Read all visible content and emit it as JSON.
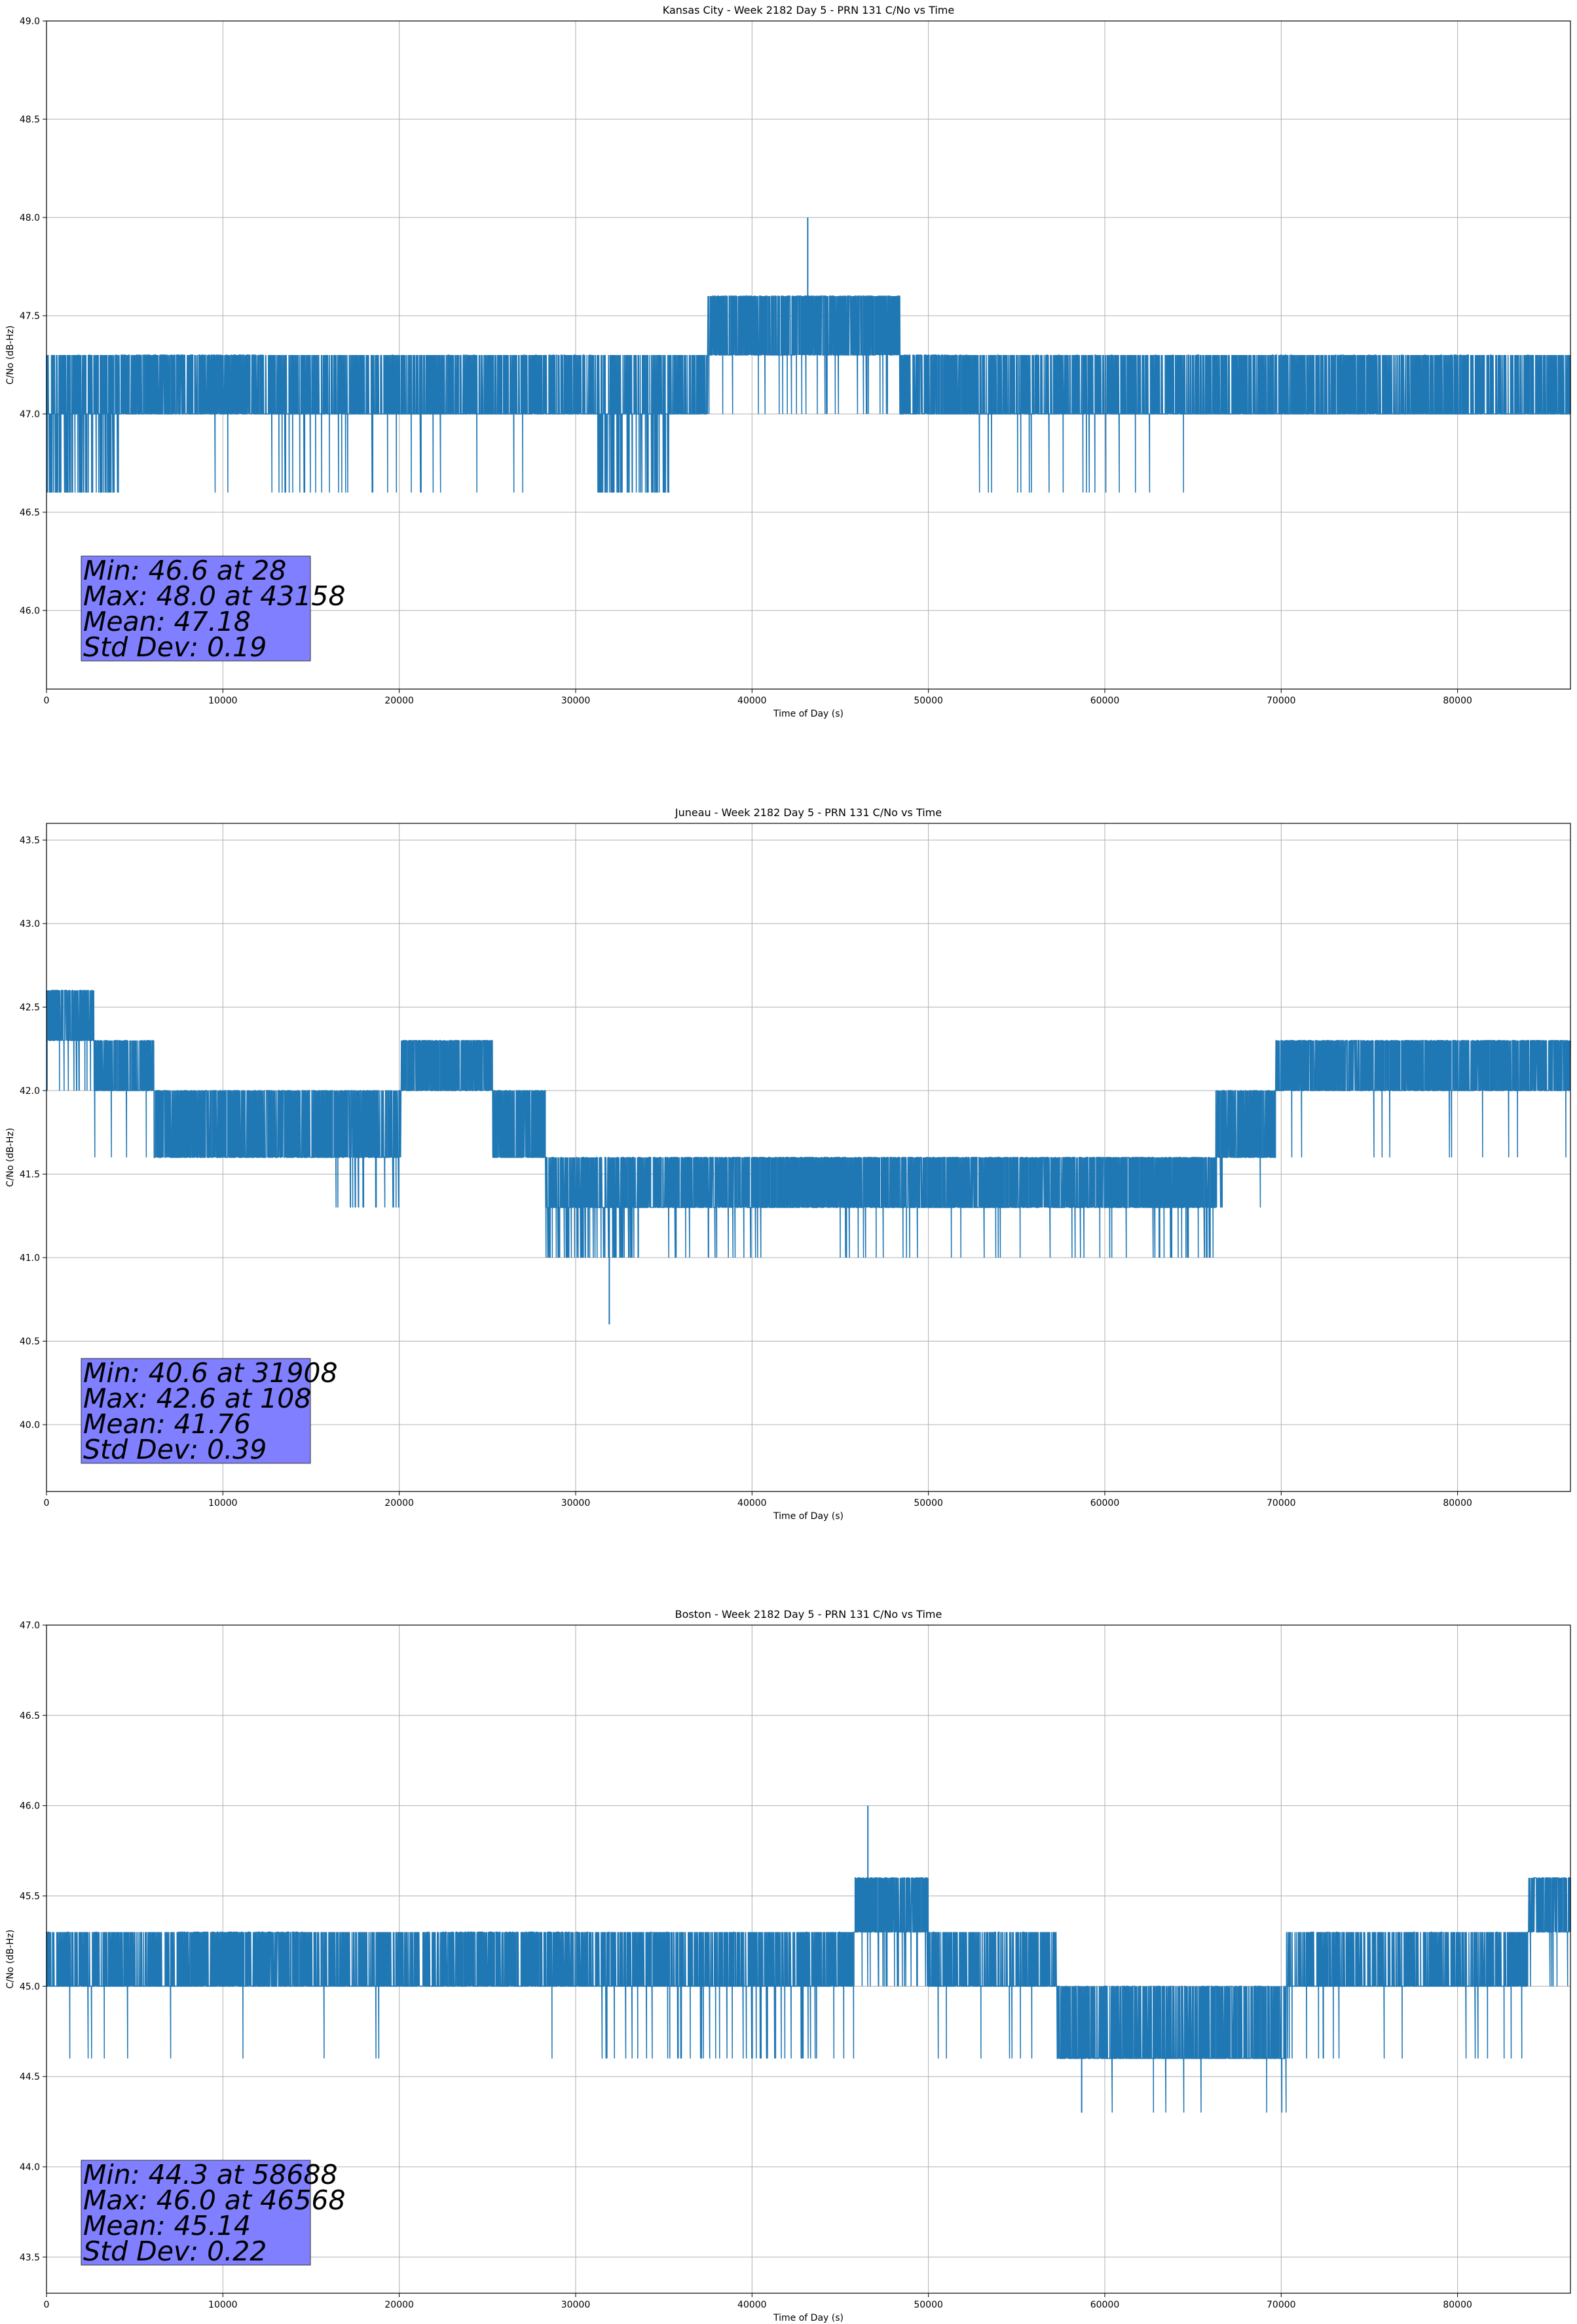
{
  "chart_data": [
    {
      "type": "line",
      "title": "Kansas City - Week 2182 Day 5 - PRN 131 C/No vs Time",
      "xlabel": "Time of Day (s)",
      "ylabel": "C/No (dB-Hz)",
      "xlim": [
        0,
        86400
      ],
      "ylim": [
        45.6,
        49.0
      ],
      "xticks": [
        0,
        10000,
        20000,
        30000,
        40000,
        50000,
        60000,
        70000,
        80000
      ],
      "yticks": [
        "46.0",
        "46.5",
        "47.0",
        "47.5",
        "48.0",
        "48.5",
        "49.0"
      ],
      "grid": true,
      "series_color": "#1f77b4",
      "levels": [
        46.6,
        47.0,
        47.3,
        47.6
      ],
      "segments": [
        {
          "x0": 0,
          "x1": 4100,
          "base": 47.0,
          "peak": 47.3,
          "low": 46.6,
          "lowFreq": 0.9,
          "highFreq": 0.05
        },
        {
          "x0": 4100,
          "x1": 12300,
          "base": 47.0,
          "peak": 47.3,
          "low": 46.6,
          "lowFreq": 0.02,
          "highFreq": 0.6
        },
        {
          "x0": 12300,
          "x1": 22500,
          "base": 47.0,
          "peak": 47.3,
          "low": 46.6,
          "lowFreq": 0.15,
          "highFreq": 0.02
        },
        {
          "x0": 22500,
          "x1": 31200,
          "base": 47.0,
          "peak": 47.3,
          "low": 46.6,
          "lowFreq": 0.03,
          "highFreq": 0.15
        },
        {
          "x0": 31200,
          "x1": 35300,
          "base": 47.0,
          "peak": 47.3,
          "low": 46.6,
          "lowFreq": 0.9,
          "highFreq": 0.0
        },
        {
          "x0": 35300,
          "x1": 37500,
          "base": 47.0,
          "peak": 47.3,
          "low": 46.6,
          "lowFreq": 0.0,
          "highFreq": 0.02
        },
        {
          "x0": 37500,
          "x1": 48400,
          "base": 47.3,
          "peak": 47.6,
          "low": 47.0,
          "lowFreq": 0.1,
          "highFreq": 0.85
        },
        {
          "x0": 48400,
          "x1": 52900,
          "base": 47.0,
          "peak": 47.3,
          "low": 47.0,
          "lowFreq": 0.0,
          "highFreq": 0.4
        },
        {
          "x0": 52900,
          "x1": 65200,
          "base": 47.0,
          "peak": 47.3,
          "low": 46.6,
          "lowFreq": 0.08,
          "highFreq": 0.05
        },
        {
          "x0": 65200,
          "x1": 86400,
          "base": 47.0,
          "peak": 47.3,
          "low": 46.6,
          "lowFreq": 0.0,
          "highFreq": 0.1
        }
      ],
      "spikes": [
        {
          "x": 43158,
          "value": 48.0
        }
      ],
      "stats": [
        "Min: 46.6 at 28",
        "Max: 48.0 at 43158",
        "Mean: 47.18",
        "Std Dev: 0.19"
      ]
    },
    {
      "type": "line",
      "title": "Juneau - Week 2182 Day 5 - PRN 131 C/No vs Time",
      "xlabel": "Time of Day (s)",
      "ylabel": "C/No (dB-Hz)",
      "xlim": [
        0,
        86400
      ],
      "ylim": [
        39.6,
        43.6
      ],
      "xticks": [
        0,
        10000,
        20000,
        30000,
        40000,
        50000,
        60000,
        70000,
        80000
      ],
      "yticks": [
        "40.0",
        "40.5",
        "41.0",
        "41.5",
        "42.0",
        "42.5",
        "43.0",
        "43.5"
      ],
      "grid": true,
      "series_color": "#1f77b4",
      "levels": [
        41.0,
        41.3,
        41.6,
        42.0,
        42.3,
        42.6
      ],
      "segments": [
        {
          "x0": 0,
          "x1": 2700,
          "base": 42.3,
          "peak": 42.6,
          "low": 42.0,
          "lowFreq": 0.2,
          "highFreq": 0.7
        },
        {
          "x0": 2700,
          "x1": 6100,
          "base": 42.0,
          "peak": 42.3,
          "low": 41.6,
          "lowFreq": 0.02,
          "highFreq": 0.5
        },
        {
          "x0": 6100,
          "x1": 16400,
          "base": 41.6,
          "peak": 42.0,
          "low": 41.6,
          "lowFreq": 0.0,
          "highFreq": 0.7
        },
        {
          "x0": 16400,
          "x1": 20100,
          "base": 41.6,
          "peak": 42.0,
          "low": 41.3,
          "lowFreq": 0.3,
          "highFreq": 0.6
        },
        {
          "x0": 20100,
          "x1": 25300,
          "base": 42.0,
          "peak": 42.3,
          "low": 42.0,
          "lowFreq": 0.0,
          "highFreq": 0.9
        },
        {
          "x0": 25300,
          "x1": 28300,
          "base": 41.6,
          "peak": 42.0,
          "low": 41.6,
          "lowFreq": 0.0,
          "highFreq": 0.7
        },
        {
          "x0": 28300,
          "x1": 33600,
          "base": 41.3,
          "peak": 41.6,
          "low": 41.0,
          "lowFreq": 0.6,
          "highFreq": 0.3
        },
        {
          "x0": 33600,
          "x1": 62700,
          "base": 41.3,
          "peak": 41.6,
          "low": 41.0,
          "lowFreq": 0.12,
          "highFreq": 0.8
        },
        {
          "x0": 62700,
          "x1": 66300,
          "base": 41.3,
          "peak": 41.6,
          "low": 41.0,
          "lowFreq": 0.45,
          "highFreq": 0.6
        },
        {
          "x0": 66300,
          "x1": 69700,
          "base": 41.6,
          "peak": 42.0,
          "low": 41.3,
          "lowFreq": 0.1,
          "highFreq": 0.7
        },
        {
          "x0": 69700,
          "x1": 86400,
          "base": 42.0,
          "peak": 42.3,
          "low": 41.6,
          "lowFreq": 0.04,
          "highFreq": 0.85
        }
      ],
      "spikes": [
        {
          "x": 31908,
          "value": 40.6
        },
        {
          "x": 108,
          "value": 42.6
        }
      ],
      "stats": [
        "Min: 40.6 at 31908",
        "Max: 42.6 at 108",
        "Mean: 41.76",
        "Std Dev: 0.39"
      ]
    },
    {
      "type": "line",
      "title": "Boston - Week 2182 Day 5 - PRN 131 C/No vs Time",
      "xlabel": "Time of Day (s)",
      "ylabel": "C/No (dB-Hz)",
      "xlim": [
        0,
        86400
      ],
      "ylim": [
        43.3,
        47.0
      ],
      "xticks": [
        0,
        10000,
        20000,
        30000,
        40000,
        50000,
        60000,
        70000,
        80000
      ],
      "yticks": [
        "43.5",
        "44.0",
        "44.5",
        "45.0",
        "45.5",
        "46.0",
        "46.5",
        "47.0"
      ],
      "grid": true,
      "series_color": "#1f77b4",
      "levels": [
        44.3,
        44.6,
        45.0,
        45.3,
        45.6
      ],
      "segments": [
        {
          "x0": 0,
          "x1": 7500,
          "base": 45.0,
          "peak": 45.3,
          "low": 44.6,
          "lowFreq": 0.05,
          "highFreq": 0.03
        },
        {
          "x0": 7500,
          "x1": 14800,
          "base": 45.0,
          "peak": 45.3,
          "low": 44.6,
          "lowFreq": 0.01,
          "highFreq": 0.6
        },
        {
          "x0": 14800,
          "x1": 22500,
          "base": 45.0,
          "peak": 45.3,
          "low": 44.6,
          "lowFreq": 0.04,
          "highFreq": 0.02
        },
        {
          "x0": 22500,
          "x1": 30800,
          "base": 45.0,
          "peak": 45.3,
          "low": 44.6,
          "lowFreq": 0.02,
          "highFreq": 0.45
        },
        {
          "x0": 30800,
          "x1": 45800,
          "base": 45.0,
          "peak": 45.3,
          "low": 44.6,
          "lowFreq": 0.2,
          "highFreq": 0.05
        },
        {
          "x0": 45800,
          "x1": 50000,
          "base": 45.3,
          "peak": 45.6,
          "low": 45.0,
          "lowFreq": 0.2,
          "highFreq": 0.85
        },
        {
          "x0": 50000,
          "x1": 57300,
          "base": 45.0,
          "peak": 45.3,
          "low": 44.6,
          "lowFreq": 0.03,
          "highFreq": 0.05
        },
        {
          "x0": 57300,
          "x1": 70300,
          "base": 44.6,
          "peak": 45.0,
          "low": 44.3,
          "lowFreq": 0.03,
          "highFreq": 0.35
        },
        {
          "x0": 70300,
          "x1": 84000,
          "base": 45.0,
          "peak": 45.3,
          "low": 44.6,
          "lowFreq": 0.1,
          "highFreq": 0.05
        },
        {
          "x0": 84000,
          "x1": 86400,
          "base": 45.3,
          "peak": 45.6,
          "low": 45.0,
          "lowFreq": 0.2,
          "highFreq": 0.8
        }
      ],
      "spikes": [
        {
          "x": 46568,
          "value": 46.0
        },
        {
          "x": 58688,
          "value": 44.3
        }
      ],
      "stats": [
        "Min: 44.3 at 58688",
        "Max: 46.0 at 46568",
        "Mean: 45.14",
        "Std Dev: 0.22"
      ]
    }
  ]
}
